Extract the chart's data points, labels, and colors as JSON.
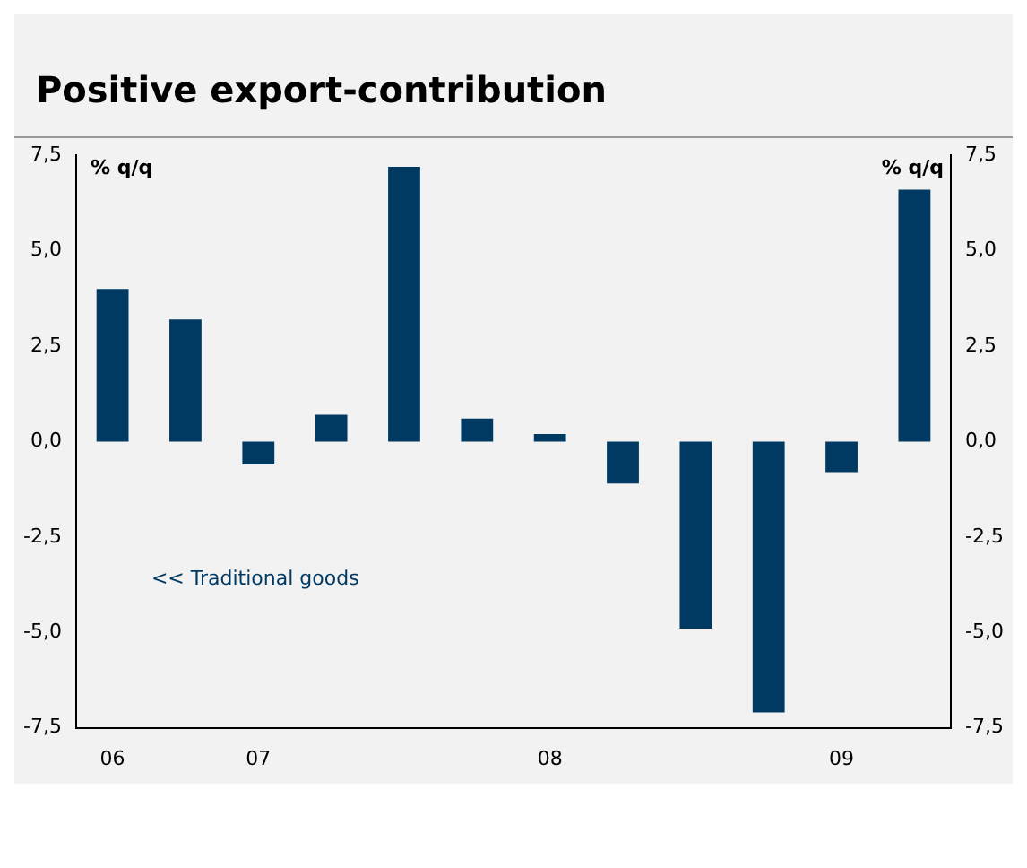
{
  "chart_data": {
    "type": "bar",
    "title": "Positive export-contribution",
    "ylabel": "% q/q",
    "y2label": "% q/q",
    "categories": [
      "06",
      null,
      "07",
      null,
      null,
      null,
      "08",
      null,
      null,
      null,
      "09",
      null
    ],
    "series": [
      {
        "color": "#003a63",
        "values": [
          4.0,
          3.2,
          -0.6,
          0.7,
          7.2,
          0.6,
          0.2,
          -1.1,
          -4.9,
          -7.1,
          -0.8,
          6.6
        ]
      }
    ],
    "ylim": [
      -7.5,
      7.5
    ],
    "yticks": [
      {
        "value": -7.5,
        "label": "-7,5"
      },
      {
        "value": -5,
        "label": "-5,0"
      },
      {
        "value": -2.5,
        "label": "-2,5"
      },
      {
        "value": 0,
        "label": "0,0"
      },
      {
        "value": 2.5,
        "label": "2,5"
      },
      {
        "value": 5,
        "label": "5,0"
      },
      {
        "value": 7.5,
        "label": "7,5"
      }
    ],
    "y2lim": [
      -7.5,
      7.5
    ],
    "y2ticks": [
      {
        "value": -7.5,
        "label": "-7,5"
      },
      {
        "value": -5,
        "label": "-5,0"
      },
      {
        "value": -2.5,
        "label": "-2,5"
      },
      {
        "value": 0,
        "label": "0,0"
      },
      {
        "value": 2.5,
        "label": "2,5"
      },
      {
        "value": 5,
        "label": "5,0"
      },
      {
        "value": 7.5,
        "label": "7,5"
      }
    ],
    "annotations": [
      "<< Traditional goods"
    ],
    "grid": false,
    "legend": false
  }
}
